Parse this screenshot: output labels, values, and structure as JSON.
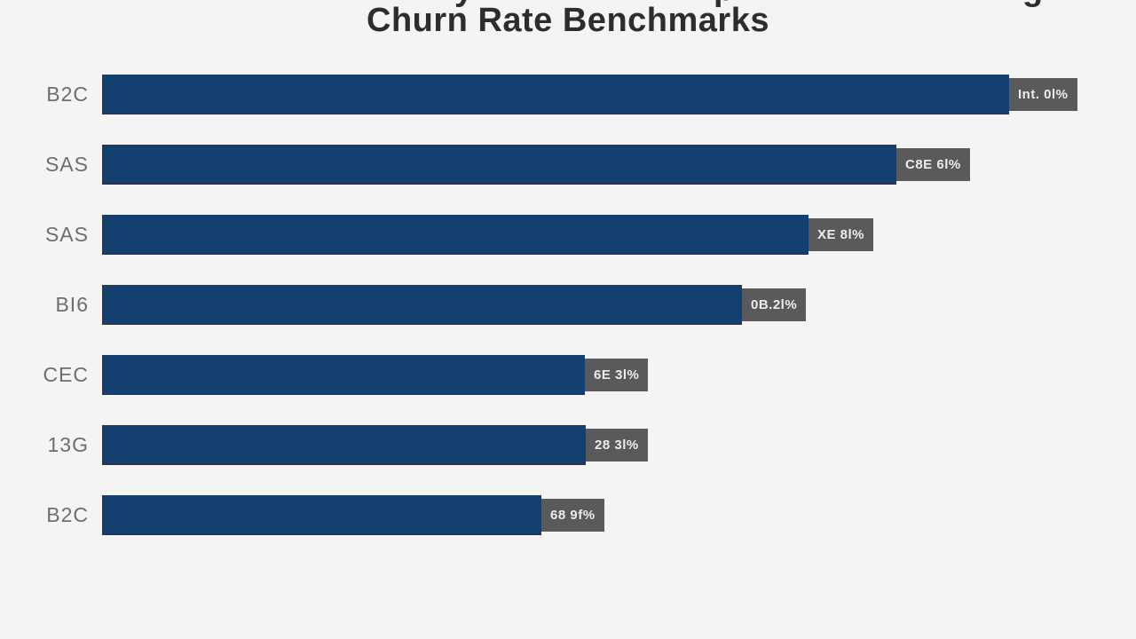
{
  "title": {
    "text": "Churn Rate Benchmarks",
    "note": "first title line cut off at top edge of screenshot"
  },
  "colors": {
    "background": "#f4f4f2",
    "bar": "#14406f",
    "value_box": "#5a5a5a",
    "value_text": "#ececec",
    "category_label": "#6e6e6e",
    "title_text": "#2d2d30"
  },
  "chart_data": {
    "type": "bar",
    "orientation": "horizontal",
    "title": "Churn Rate Benchmarks",
    "categories": [
      "B2C",
      "SAS",
      "SAS",
      "BI6",
      "CEC",
      "13G",
      "B2C"
    ],
    "values_pct_of_max": [
      100,
      87.6,
      77.9,
      70.5,
      53.2,
      53.3,
      48.4
    ],
    "value_labels": [
      "Int. 0l%",
      "C8E 6l%",
      "XE 8l%",
      "0B.2l%",
      "6E 3l%",
      "28 3l%",
      "68 9f%"
    ],
    "xlabel": "",
    "ylabel": "",
    "grid": false,
    "legend": false
  }
}
